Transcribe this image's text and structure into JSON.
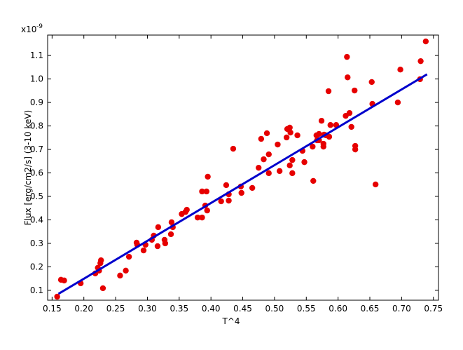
{
  "chart_data": {
    "type": "scatter",
    "x_label": "T^4",
    "y_label": "Flux [erg/cm2/s] (3-10 keV)",
    "y_multiplier": "x10",
    "y_multiplier_exponent": "-9",
    "xlim": [
      0.143,
      0.758
    ],
    "ylim": [
      0.058,
      1.187
    ],
    "xticks": [
      0.15,
      {
        "value": 0.2,
        "label": "0.20"
      },
      0.25,
      {
        "value": 0.3,
        "label": "0.30"
      },
      0.35,
      {
        "value": 0.4,
        "label": "0.40"
      },
      0.45,
      {
        "value": 0.5,
        "label": "0.50"
      },
      0.55,
      {
        "value": 0.6,
        "label": "0.60"
      },
      0.65,
      {
        "value": 0.7,
        "label": "0.70"
      },
      0.75
    ],
    "yticks": [
      0.1,
      0.2,
      0.3,
      0.4,
      0.5,
      0.6,
      0.7,
      0.8,
      0.9,
      {
        "value": 1,
        "label": "1.0"
      },
      1.1
    ],
    "series": [
      {
        "type": "scatter",
        "color": "#e60000",
        "x": [
          0.158,
          0.164,
          0.169,
          0.195,
          0.218,
          0.222,
          0.224,
          0.226,
          0.227,
          0.23,
          0.257,
          0.266,
          0.271,
          0.283,
          0.284,
          0.294,
          0.297,
          0.307,
          0.31,
          0.316,
          0.317,
          0.327,
          0.328,
          0.337,
          0.338,
          0.34,
          0.354,
          0.36,
          0.362,
          0.379,
          0.386,
          0.386,
          0.391,
          0.393,
          0.394,
          0.395,
          0.416,
          0.424,
          0.428,
          0.428,
          0.435,
          0.447,
          0.448,
          0.465,
          0.475,
          0.479,
          0.483,
          0.488,
          0.491,
          0.491,
          0.505,
          0.508,
          0.519,
          0.52,
          0.524,
          0.524,
          0.525,
          0.528,
          0.528,
          0.536,
          0.544,
          0.547,
          0.56,
          0.561,
          0.566,
          0.567,
          0.57,
          0.57,
          0.574,
          0.577,
          0.577,
          0.578,
          0.581,
          0.585,
          0.586,
          0.588,
          0.597,
          0.612,
          0.614,
          0.615,
          0.618,
          0.621,
          0.626,
          0.627,
          0.627,
          0.659,
          0.653,
          0.654,
          0.694,
          0.698,
          0.729,
          0.73,
          0.738
        ],
        "values": [
          0.073,
          0.145,
          0.142,
          0.13,
          0.172,
          0.196,
          0.184,
          0.216,
          0.228,
          0.109,
          0.163,
          0.184,
          0.243,
          0.303,
          0.294,
          0.27,
          0.294,
          0.315,
          0.333,
          0.288,
          0.369,
          0.315,
          0.3,
          0.339,
          0.39,
          0.369,
          0.425,
          0.434,
          0.443,
          0.41,
          0.41,
          0.521,
          0.461,
          0.521,
          0.44,
          0.584,
          0.479,
          0.548,
          0.509,
          0.482,
          0.703,
          0.542,
          0.515,
          0.536,
          0.622,
          0.745,
          0.658,
          0.769,
          0.679,
          0.599,
          0.721,
          0.608,
          0.751,
          0.787,
          0.632,
          0.793,
          0.772,
          0.655,
          0.599,
          0.76,
          0.694,
          0.646,
          0.712,
          0.566,
          0.76,
          0.739,
          0.766,
          0.739,
          0.822,
          0.724,
          0.712,
          0.763,
          0.76,
          0.948,
          0.754,
          0.804,
          0.804,
          0.843,
          1.094,
          1.007,
          0.855,
          0.796,
          0.951,
          0.7,
          0.715,
          0.551,
          0.987,
          0.894,
          0.9,
          1.04,
          0.999,
          1.076,
          1.16
        ]
      },
      {
        "type": "line",
        "color": "#0000cc",
        "x": [
          0.16,
          0.74
        ],
        "values": [
          0.085,
          1.02
        ]
      }
    ]
  }
}
